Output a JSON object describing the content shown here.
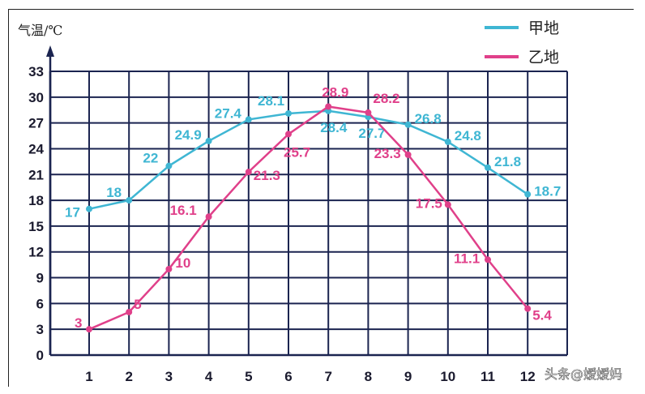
{
  "chart_data": {
    "type": "line",
    "ylabel": "气温/℃",
    "x": [
      1,
      2,
      3,
      4,
      5,
      6,
      7,
      8,
      9,
      10,
      11,
      12
    ],
    "x_tick_labels": [
      "1",
      "2",
      "3",
      "4",
      "5",
      "6",
      "7",
      "8",
      "9",
      "10",
      "11",
      "12"
    ],
    "y_ticks": [
      0,
      3,
      6,
      9,
      12,
      15,
      18,
      21,
      24,
      27,
      30,
      33
    ],
    "ylim": [
      0,
      33
    ],
    "grid": true,
    "legend_placement": "top-right",
    "series": [
      {
        "name": "甲地",
        "color": "#3fb6d3",
        "values": [
          17,
          18,
          22,
          24.9,
          27.4,
          28.1,
          28.4,
          27.7,
          26.8,
          24.8,
          21.8,
          18.7
        ]
      },
      {
        "name": "乙地",
        "color": "#e0408a",
        "values": [
          3,
          5,
          10,
          16.1,
          21.3,
          25.7,
          28.9,
          28.2,
          23.3,
          17.5,
          11.1,
          5.4
        ]
      }
    ],
    "watermark": "头条@嫒嫒妈"
  }
}
